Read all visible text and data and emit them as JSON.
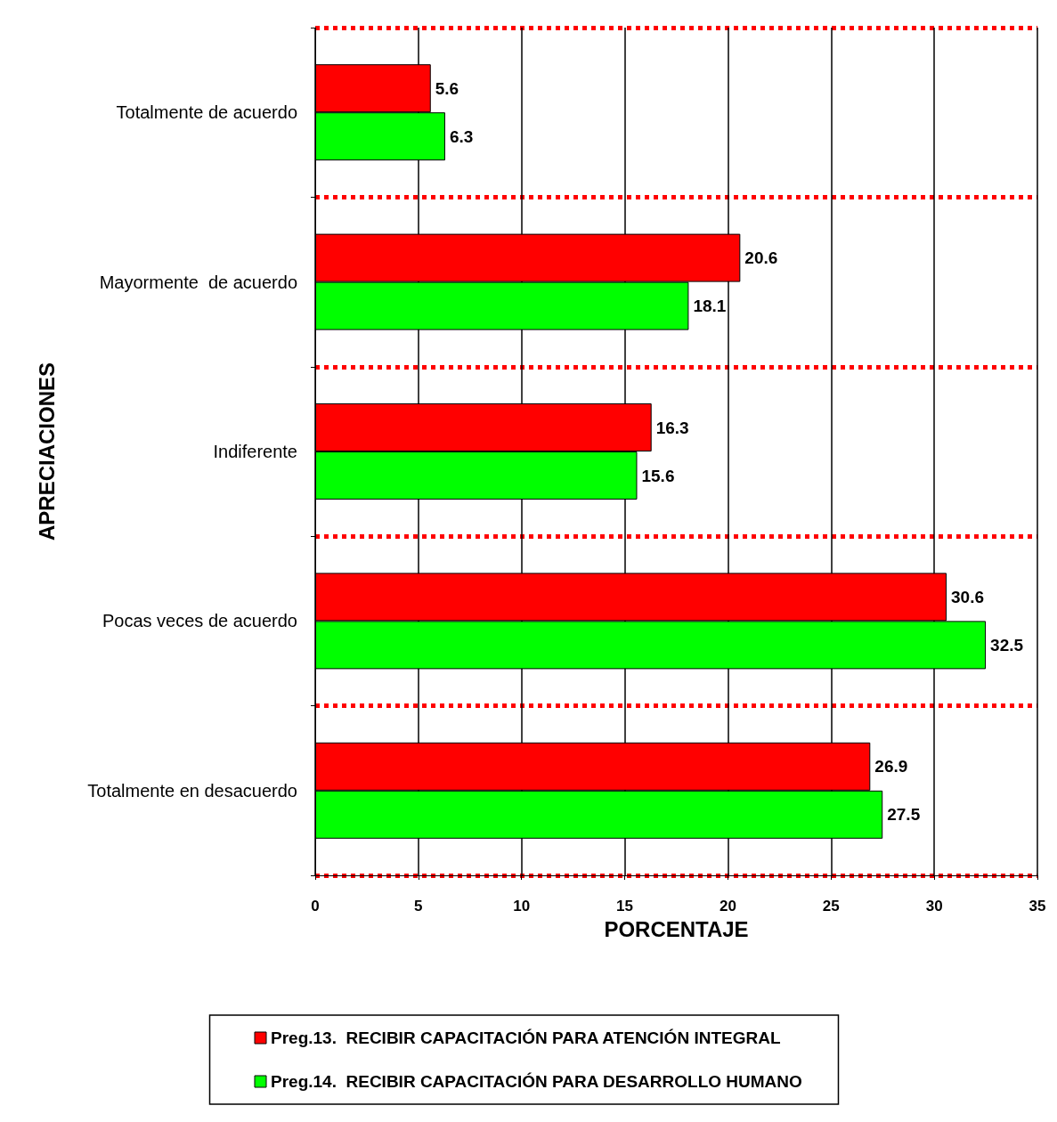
{
  "chart_data": {
    "type": "bar",
    "orientation": "horizontal",
    "xlabel": "PORCENTAJE",
    "ylabel": "APRECIACIONES",
    "categories": [
      "Totalmente de acuerdo",
      "Mayormente  de acuerdo",
      "Indiferente",
      "Pocas veces de acuerdo",
      "Totalmente en desacuerdo"
    ],
    "series": [
      {
        "name": "Preg.13.  RECIBIR CAPACITACIÓN PARA ATENCIÓN INTEGRAL",
        "color": "#ff0000",
        "values": [
          5.6,
          20.6,
          16.3,
          30.6,
          26.9
        ]
      },
      {
        "name": "Preg.14.  RECIBIR CAPACITACIÓN PARA DESARROLLO HUMANO",
        "color": "#00ff00",
        "values": [
          6.3,
          18.1,
          15.6,
          32.5,
          27.5
        ]
      }
    ],
    "xlim": [
      0,
      35
    ],
    "xticks": [
      0,
      5,
      10,
      15,
      20,
      25,
      30,
      35
    ],
    "grid": true,
    "legend": "bottom",
    "data_labels": true
  }
}
